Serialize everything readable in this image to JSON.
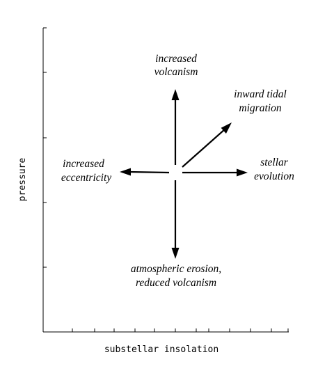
{
  "axes": {
    "x_label": "substellar insolation",
    "y_label": "pressure"
  },
  "effects": {
    "up": [
      "increased",
      "volcanism"
    ],
    "up_right": [
      "inward tidal",
      "migration"
    ],
    "right": [
      "stellar",
      "evolution"
    ],
    "left": [
      "increased",
      "eccentricity"
    ],
    "down": [
      "atmospheric erosion,",
      "reduced volcanism"
    ]
  }
}
